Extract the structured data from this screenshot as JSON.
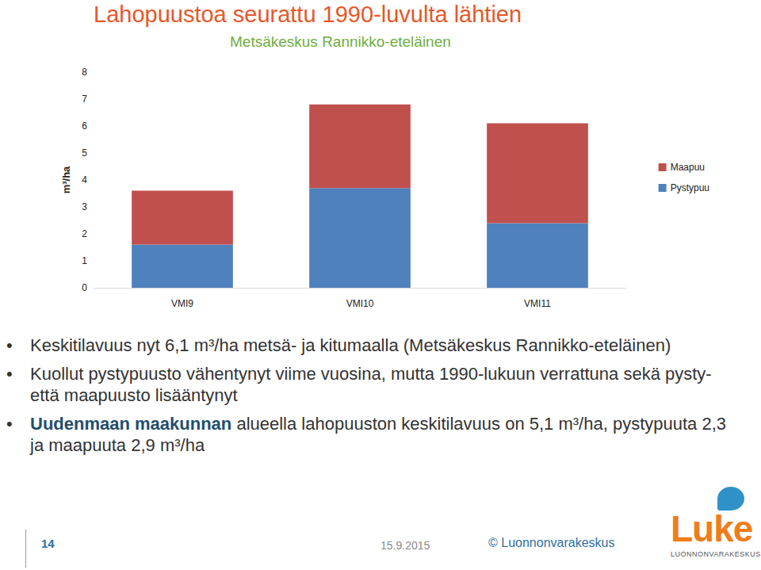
{
  "chart_data": {
    "type": "bar",
    "title": "Lahopuustoa seurattu 1990-luvulta lähtien",
    "subtitle": "Metsäkeskus Rannikko-eteläinen",
    "y_label": "m³/ha",
    "categories": [
      "VMI9",
      "VMI10",
      "VMI11"
    ],
    "series": [
      {
        "name": "Pystypuu",
        "color": "#4f81bd",
        "values": [
          1.6,
          3.7,
          2.4
        ]
      },
      {
        "name": "Maapuu",
        "color": "#c0504d",
        "values": [
          2.0,
          3.1,
          3.7
        ]
      }
    ],
    "stacked": true,
    "ylim": [
      0,
      8
    ],
    "yticks": [
      0,
      1,
      2,
      3,
      4,
      5,
      6,
      7,
      8
    ],
    "grid": false,
    "legend": "right"
  },
  "slide": {
    "bullets": [
      [
        {
          "text": "Keskitilavuus nyt 6,1 m³/ha metsä- ja kitumaalla (Metsäkeskus Rannikko-eteläinen)"
        }
      ],
      [
        {
          "text": "Kuollut pystypuusto vähentynyt viime vuosina, mutta 1990-lukuun verrattuna sekä pysty- että maapuusto lisääntynyt"
        }
      ],
      [
        {
          "text": "Uudenmaan maakunnan",
          "bold": true
        },
        {
          "text": " alueella lahopuuston keskitilavuus on 5,1 m³/ha, pystypuuta 2,3 ja maapuuta 2,9 m³/ha"
        }
      ]
    ],
    "page_number": "14",
    "date": "15.9.2015",
    "copyright": "© Luonnonvarakeskus",
    "logo": "Luke",
    "logo_subtitle": "LUONNONVARAKESKUS"
  }
}
